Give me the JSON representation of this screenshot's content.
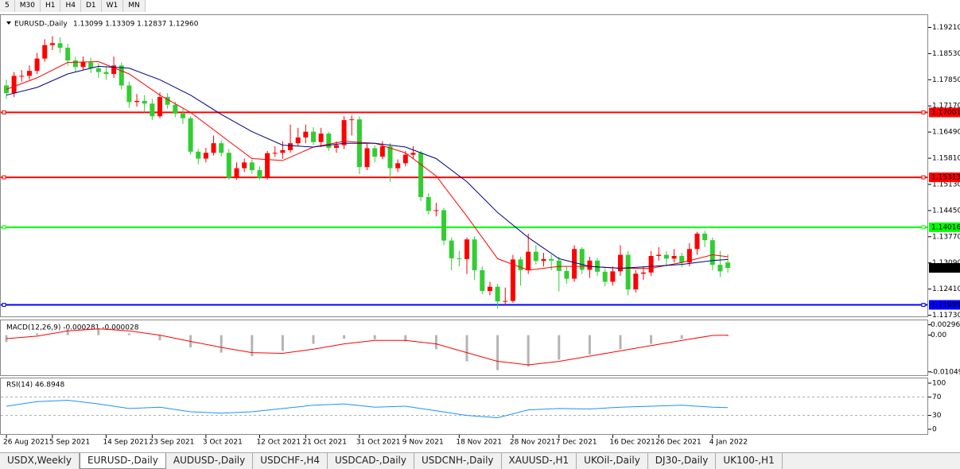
{
  "toolbar": {
    "timeframes": [
      "5",
      "M30",
      "H1",
      "H4",
      "D1",
      "W1",
      "MN"
    ]
  },
  "tabs": [
    "USDX,Weekly",
    "EURUSD-,Daily",
    "AUDUSD-,Daily",
    "USDCHF-,H4",
    "USDCAD-,Daily",
    "USDCNH-,Daily",
    "XAUUSD-,H1",
    "UKOil-,Daily",
    "DJ30-,Daily",
    "UK100-,H1"
  ],
  "active_tab": 1,
  "chart_data": {
    "type": "candlestick",
    "title": "EURUSD-,Daily",
    "title_values": "1.13099 1.13309 1.12837 1.12960",
    "categories": [
      "26 Aug 2021",
      null,
      null,
      null,
      null,
      null,
      "5 Sep 2021",
      null,
      null,
      null,
      null,
      null,
      null,
      "14 Sep 2021",
      null,
      null,
      null,
      null,
      null,
      "23 Sep 2021",
      null,
      null,
      null,
      null,
      null,
      null,
      "3 Oct 2021",
      null,
      null,
      null,
      null,
      null,
      null,
      "12 Oct 2021",
      null,
      null,
      null,
      null,
      null,
      "21 Oct 2021",
      null,
      null,
      null,
      null,
      null,
      null,
      "31 Oct 2021",
      null,
      null,
      null,
      null,
      null,
      "9 Nov 2021",
      null,
      null,
      null,
      null,
      null,
      null,
      "18 Nov 2021",
      null,
      null,
      null,
      null,
      null,
      null,
      "28 Nov 2021",
      null,
      null,
      null,
      null,
      null,
      "7 Dec 2021",
      null,
      null,
      null,
      null,
      null,
      null,
      "16 Dec 2021",
      null,
      null,
      null,
      null,
      null,
      "26 Dec 2021",
      null,
      null,
      null,
      null,
      null,
      null,
      "4 Jan 2022",
      null,
      null
    ],
    "open": [
      1.177,
      1.175,
      1.1795,
      1.1795,
      1.1808,
      1.184,
      1.1875,
      1.188,
      1.1868,
      1.1835,
      1.1818,
      1.183,
      1.1815,
      1.1805,
      1.18,
      1.1822,
      1.177,
      1.1727,
      1.173,
      1.1723,
      1.169,
      1.174,
      1.172,
      1.1697,
      1.1685,
      1.1598,
      1.158,
      1.1595,
      1.162,
      1.1595,
      1.153,
      1.1555,
      1.157,
      1.155,
      1.153,
      1.1594,
      1.1595,
      1.1602,
      1.162,
      1.1635,
      1.165,
      1.1623,
      1.1645,
      1.1608,
      1.1615,
      1.168,
      1.1682,
      1.1558,
      1.1607,
      1.1585,
      1.1612,
      1.1555,
      1.1568,
      1.159,
      1.1595,
      1.148,
      1.1444,
      1.1446,
      1.1367,
      1.1321,
      1.1319,
      1.137,
      1.129,
      1.1236,
      1.1247,
      1.1209,
      1.121,
      1.1318,
      1.129,
      1.1338,
      1.1314,
      1.1319,
      1.1315,
      1.1288,
      1.1268,
      1.1345,
      1.1291,
      1.1315,
      1.1286,
      1.126,
      1.1287,
      1.133,
      1.124,
      1.1281,
      1.1284,
      1.1327,
      1.133,
      1.132,
      1.1327,
      1.131,
      1.1345,
      1.1385,
      1.1368,
      1.1304,
      1.131
    ],
    "high": [
      1.1785,
      1.1805,
      1.181,
      1.1822,
      1.1855,
      1.189,
      1.1898,
      1.1895,
      1.1878,
      1.1845,
      1.1845,
      1.1842,
      1.1828,
      1.182,
      1.1845,
      1.183,
      1.178,
      1.1748,
      1.1745,
      1.1735,
      1.1752,
      1.175,
      1.1728,
      1.171,
      1.169,
      1.1605,
      1.1608,
      1.164,
      1.1628,
      1.1605,
      1.157,
      1.158,
      1.1578,
      1.156,
      1.16,
      1.1612,
      1.1625,
      1.1668,
      1.166,
      1.1668,
      1.1662,
      1.166,
      1.165,
      1.1625,
      1.169,
      1.1692,
      1.169,
      1.1618,
      1.1615,
      1.1625,
      1.162,
      1.1578,
      1.16,
      1.1612,
      1.16,
      1.149,
      1.1465,
      1.1452,
      1.1375,
      1.134,
      1.1375,
      1.1378,
      1.13,
      1.126,
      1.1255,
      1.1245,
      1.133,
      1.1325,
      1.1385,
      1.1355,
      1.1335,
      1.133,
      1.1325,
      1.13,
      1.1355,
      1.135,
      1.1325,
      1.1322,
      1.1295,
      1.13,
      1.1355,
      1.134,
      1.129,
      1.13,
      1.134,
      1.135,
      1.134,
      1.1345,
      1.1335,
      1.136,
      1.139,
      1.1392,
      1.1375,
      1.134,
      1.1331
    ],
    "low": [
      1.1735,
      1.174,
      1.178,
      1.1785,
      1.18,
      1.1832,
      1.1862,
      1.1855,
      1.1822,
      1.1805,
      1.181,
      1.1802,
      1.179,
      1.1785,
      1.179,
      1.176,
      1.1712,
      1.1715,
      1.17,
      1.168,
      1.1685,
      1.171,
      1.1688,
      1.167,
      1.159,
      1.1565,
      1.157,
      1.1588,
      1.1585,
      1.1525,
      1.1525,
      1.1545,
      1.154,
      1.1525,
      1.1525,
      1.1585,
      1.158,
      1.1595,
      1.1612,
      1.162,
      1.1615,
      1.161,
      1.16,
      1.1595,
      1.1605,
      1.164,
      1.154,
      1.155,
      1.157,
      1.1578,
      1.152,
      1.1545,
      1.156,
      1.158,
      1.147,
      1.1435,
      1.143,
      1.1355,
      1.129,
      1.13,
      1.128,
      1.1265,
      1.1228,
      1.1225,
      1.119,
      1.12,
      1.1205,
      1.125,
      1.128,
      1.1305,
      1.13,
      1.129,
      1.1235,
      1.1255,
      1.126,
      1.128,
      1.127,
      1.1275,
      1.1248,
      1.125,
      1.1275,
      1.1225,
      1.1232,
      1.1265,
      1.1275,
      1.1315,
      1.13,
      1.131,
      1.1298,
      1.13,
      1.133,
      1.135,
      1.129,
      1.1272,
      1.1284
    ],
    "close": [
      1.175,
      1.1795,
      1.1795,
      1.1808,
      1.184,
      1.1875,
      1.188,
      1.1868,
      1.1835,
      1.1818,
      1.183,
      1.1815,
      1.1805,
      1.18,
      1.1822,
      1.177,
      1.1727,
      1.173,
      1.1723,
      1.169,
      1.174,
      1.172,
      1.1697,
      1.1685,
      1.1598,
      1.158,
      1.1595,
      1.162,
      1.1595,
      1.153,
      1.1555,
      1.157,
      1.155,
      1.153,
      1.1594,
      1.1595,
      1.1602,
      1.162,
      1.1635,
      1.165,
      1.1623,
      1.1645,
      1.1608,
      1.1615,
      1.168,
      1.1682,
      1.1558,
      1.1607,
      1.1585,
      1.1612,
      1.1555,
      1.1568,
      1.159,
      1.1595,
      1.148,
      1.1444,
      1.1446,
      1.1367,
      1.1321,
      1.1319,
      1.137,
      1.129,
      1.1236,
      1.1247,
      1.1209,
      1.121,
      1.1318,
      1.129,
      1.1338,
      1.1314,
      1.1319,
      1.1315,
      1.1288,
      1.1268,
      1.1345,
      1.1291,
      1.1315,
      1.1286,
      1.126,
      1.1287,
      1.133,
      1.124,
      1.1281,
      1.1284,
      1.1327,
      1.133,
      1.132,
      1.1327,
      1.131,
      1.1345,
      1.1385,
      1.1368,
      1.1304,
      1.1287,
      1.1296
    ],
    "up_color": "#ff0000",
    "down_color": "#32cd32",
    "ylim": [
      1.117,
      1.1955
    ],
    "yticks": [
      {
        "value": 1.1921,
        "label": "1.19210"
      },
      {
        "value": 1.1853,
        "label": "1.18530"
      },
      {
        "value": 1.1785,
        "label": "1.17850"
      },
      {
        "value": 1.1717,
        "label": "1.17170"
      },
      {
        "value": 1.1649,
        "label": "1.16490"
      },
      {
        "value": 1.1581,
        "label": "1.15810"
      },
      {
        "value": 1.1513,
        "label": "1.15130"
      },
      {
        "value": 1.1445,
        "label": "1.14450"
      },
      {
        "value": 1.1377,
        "label": "1.13770"
      },
      {
        "value": 1.1309,
        "label": "1.13090"
      },
      {
        "value": 1.1241,
        "label": "1.12410"
      },
      {
        "value": 1.1173,
        "label": "1.11730"
      }
    ],
    "levels": [
      {
        "value": 1.17001,
        "color": "#ff0000"
      },
      {
        "value": 1.15313,
        "color": "#ff0000"
      },
      {
        "value": 1.14016,
        "color": "#00ff00"
      },
      {
        "value": 1.11999,
        "color": "#0000ff"
      }
    ],
    "last_price": {
      "value": 1.1296,
      "label": "1.12960"
    },
    "indicator_x": [
      0,
      4,
      8,
      12,
      16,
      20,
      24,
      28,
      32,
      36,
      40,
      44,
      48,
      52,
      56,
      60,
      64,
      68,
      72,
      76,
      80,
      84,
      88,
      92,
      94
    ],
    "moving_averages": [
      {
        "color": "#ff0000",
        "values": [
          1.176,
          1.179,
          1.183,
          1.1832,
          1.18,
          1.1745,
          1.17,
          1.164,
          1.158,
          1.1575,
          1.161,
          1.1625,
          1.162,
          1.1595,
          1.1535,
          1.143,
          1.132,
          1.129,
          1.13,
          1.13,
          1.1295,
          1.1295,
          1.131,
          1.133,
          1.1325
        ]
      },
      {
        "color": "#000080",
        "values": [
          1.1745,
          1.1765,
          1.18,
          1.182,
          1.1815,
          1.1785,
          1.1745,
          1.1695,
          1.165,
          1.1615,
          1.161,
          1.162,
          1.162,
          1.161,
          1.158,
          1.152,
          1.144,
          1.1375,
          1.132,
          1.13,
          1.1295,
          1.13,
          1.1305,
          1.1315,
          1.1318
        ]
      }
    ],
    "macd": {
      "label": "MACD(12,26,9) -0.000281 -0.000028",
      "ylim": [
        -0.011,
        0.004
      ],
      "yticks": [
        0.002966,
        {
          "value": 0,
          "label": "0.00"
        },
        -0.010492
      ],
      "hist_color": "#b4b4b4",
      "signal_color": "#ff0000",
      "histogram": [
        -0.002,
        0.0005,
        0.002,
        0.002,
        0.0005,
        -0.0015,
        -0.0035,
        -0.005,
        -0.006,
        -0.0045,
        -0.0025,
        -0.001,
        -0.0012,
        -0.0018,
        -0.004,
        -0.0075,
        -0.01,
        -0.009,
        -0.007,
        -0.0055,
        -0.004,
        -0.0025,
        -0.001,
        0.0,
        -0.0003
      ],
      "signal": [
        -0.001,
        -0.0003,
        0.0012,
        0.0018,
        0.0012,
        0.0,
        -0.0018,
        -0.0035,
        -0.005,
        -0.0052,
        -0.004,
        -0.0025,
        -0.0015,
        -0.0015,
        -0.0025,
        -0.005,
        -0.0075,
        -0.0085,
        -0.0075,
        -0.006,
        -0.0045,
        -0.003,
        -0.0015,
        -0.0001,
        0.0
      ]
    },
    "rsi": {
      "label": "RSI(14) 46.8948",
      "ylim": [
        0,
        100
      ],
      "yticks": [
        100,
        70,
        30,
        0
      ],
      "levels": [
        70,
        30
      ],
      "color": "#1e90ff",
      "values": [
        50,
        60,
        63,
        55,
        45,
        48,
        38,
        35,
        38,
        45,
        52,
        55,
        48,
        50,
        40,
        30,
        25,
        42,
        45,
        44,
        48,
        50,
        52,
        48,
        46.8948
      ]
    }
  }
}
